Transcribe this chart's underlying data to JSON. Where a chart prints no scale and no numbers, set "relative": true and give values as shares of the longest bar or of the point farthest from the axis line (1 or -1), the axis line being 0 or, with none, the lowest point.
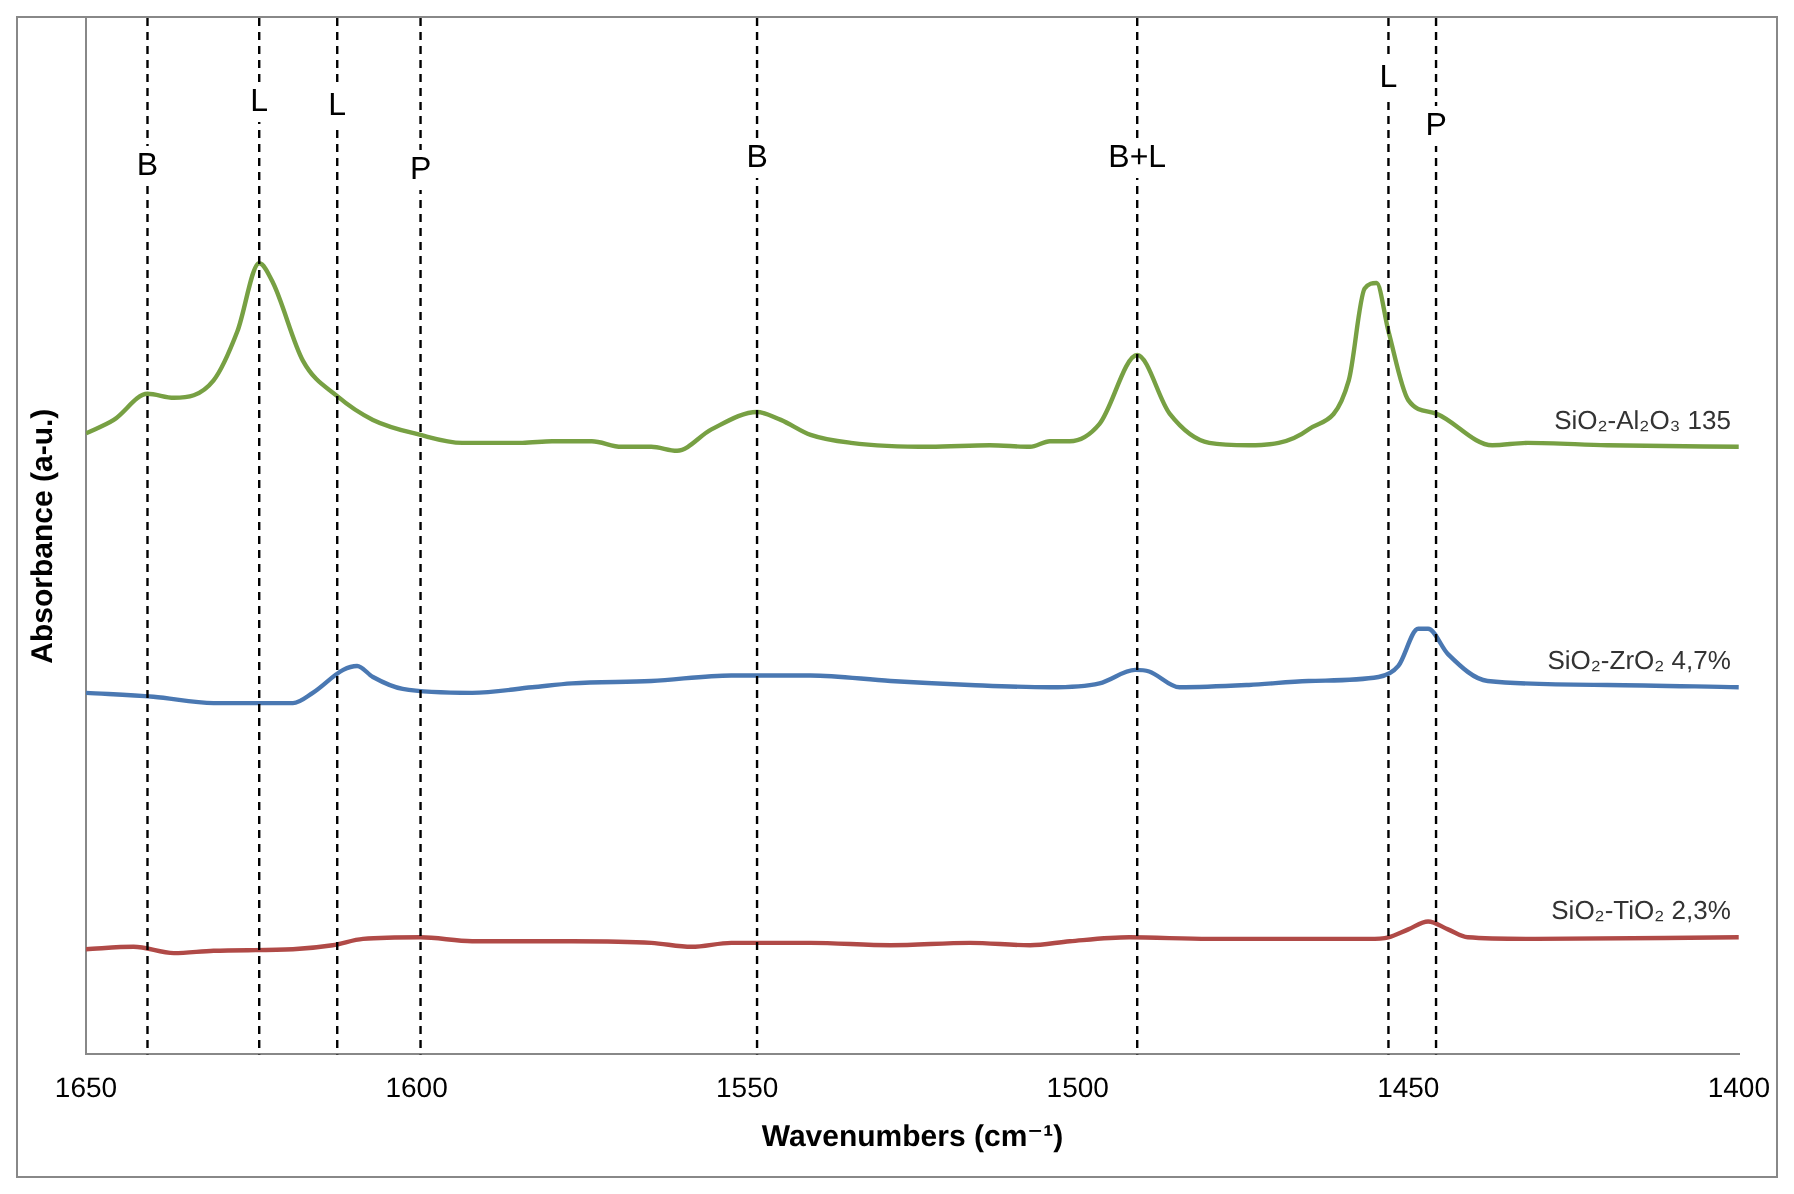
{
  "chart_data": {
    "type": "line",
    "relative": true,
    "xlabel": "Wavenumbers (cm⁻¹)",
    "ylabel": "Absorbance (a-u.)",
    "xlim": [
      1650,
      1400
    ],
    "xticks": [
      1650,
      1600,
      1550,
      1500,
      1450,
      1400
    ],
    "grid": false,
    "legend": false,
    "marker": "none",
    "line_style": "solid",
    "series": [
      {
        "name": "SiO₂-Al₂O₃ 135",
        "color": "#77a043",
        "x": [
          1650,
          1645.8,
          1640.7,
          1636.7,
          1630.7,
          1627.1,
          1623.8,
          1621.7,
          1617.2,
          1612,
          1606.6,
          1599.4,
          1593.1,
          1584,
          1579.5,
          1573.5,
          1569,
          1564.5,
          1560.6,
          1555.4,
          1548.5,
          1544.9,
          1540.4,
          1534.3,
          1522.3,
          1513.3,
          1507.2,
          1504.2,
          1501.2,
          1496.7,
          1491,
          1486.1,
          1480.1,
          1474.1,
          1465.1,
          1459,
          1456.6,
          1454.8,
          1453,
          1450,
          1445.8,
          1437.3,
          1431.9,
          1419.9,
          1400
        ],
        "values": [
          0.785,
          0.802,
          0.835,
          0.83,
          0.852,
          0.914,
          1,
          0.975,
          0.877,
          0.832,
          0.802,
          0.783,
          0.773,
          0.773,
          0.775,
          0.775,
          0.768,
          0.768,
          0.763,
          0.79,
          0.812,
          0.802,
          0.783,
          0.773,
          0.768,
          0.77,
          0.768,
          0.775,
          0.775,
          0.797,
          0.884,
          0.81,
          0.773,
          0.77,
          0.79,
          0.852,
          0.968,
          0.975,
          0.914,
          0.827,
          0.81,
          0.77,
          0.773,
          0.77,
          0.768
        ]
      },
      {
        "name": "SiO₂-ZrO₂ 4,7%",
        "color": "#4a78b2",
        "x": [
          1650,
          1639.8,
          1630.7,
          1618.7,
          1615.7,
          1611.1,
          1609,
          1606.6,
          1602.1,
          1591.6,
          1582.5,
          1576.5,
          1564.5,
          1552.4,
          1540.4,
          1528.3,
          1516.3,
          1504.2,
          1496.7,
          1491.3,
          1489.2,
          1484.6,
          1474.1,
          1465.1,
          1454.5,
          1451.5,
          1448.5,
          1447,
          1444,
          1438,
          1419.9,
          1400
        ],
        "values": [
          0.457,
          0.452,
          0.444,
          0.444,
          0.457,
          0.486,
          0.491,
          0.477,
          0.462,
          0.457,
          0.464,
          0.469,
          0.472,
          0.479,
          0.479,
          0.472,
          0.467,
          0.464,
          0.469,
          0.486,
          0.484,
          0.464,
          0.467,
          0.472,
          0.477,
          0.491,
          0.538,
          0.538,
          0.506,
          0.472,
          0.467,
          0.464
        ]
      },
      {
        "name": "SiO₂-TiO₂ 2,3%",
        "color": "#b04a47",
        "x": [
          1650,
          1642.8,
          1636.7,
          1630.7,
          1618.7,
          1612.7,
          1608.1,
          1599.4,
          1591.6,
          1576.5,
          1564.5,
          1558.4,
          1552.4,
          1540.4,
          1528.3,
          1516.3,
          1507.2,
          1501.2,
          1492.2,
          1480.1,
          1468.1,
          1456,
          1453,
          1450,
          1447,
          1444,
          1441,
          1431.9,
          1400
        ],
        "values": [
          0.133,
          0.136,
          0.128,
          0.131,
          0.133,
          0.138,
          0.146,
          0.148,
          0.143,
          0.143,
          0.141,
          0.136,
          0.141,
          0.141,
          0.138,
          0.141,
          0.138,
          0.143,
          0.148,
          0.146,
          0.146,
          0.146,
          0.148,
          0.158,
          0.168,
          0.158,
          0.148,
          0.146,
          0.148
        ]
      }
    ],
    "ref_lines": [
      {
        "axis": "x",
        "value": 1640.7,
        "label": "B",
        "color": "#000000",
        "line_style": "dashed"
      },
      {
        "axis": "x",
        "value": 1623.8,
        "label": "L",
        "color": "#000000",
        "line_style": "dashed"
      },
      {
        "axis": "x",
        "value": 1612,
        "label": "L",
        "color": "#000000",
        "line_style": "dashed"
      },
      {
        "axis": "x",
        "value": 1599.4,
        "label": "P",
        "color": "#000000",
        "line_style": "dashed"
      },
      {
        "axis": "x",
        "value": 1548.5,
        "label": "B",
        "color": "#000000",
        "line_style": "dashed"
      },
      {
        "axis": "x",
        "value": 1491,
        "label": "B+L",
        "color": "#000000",
        "line_style": "dashed"
      },
      {
        "axis": "x",
        "value": 1453,
        "label": "L",
        "color": "#000000",
        "line_style": "dashed"
      },
      {
        "axis": "x",
        "value": 1445.8,
        "label": "P",
        "color": "#000000",
        "line_style": "dashed"
      }
    ]
  }
}
